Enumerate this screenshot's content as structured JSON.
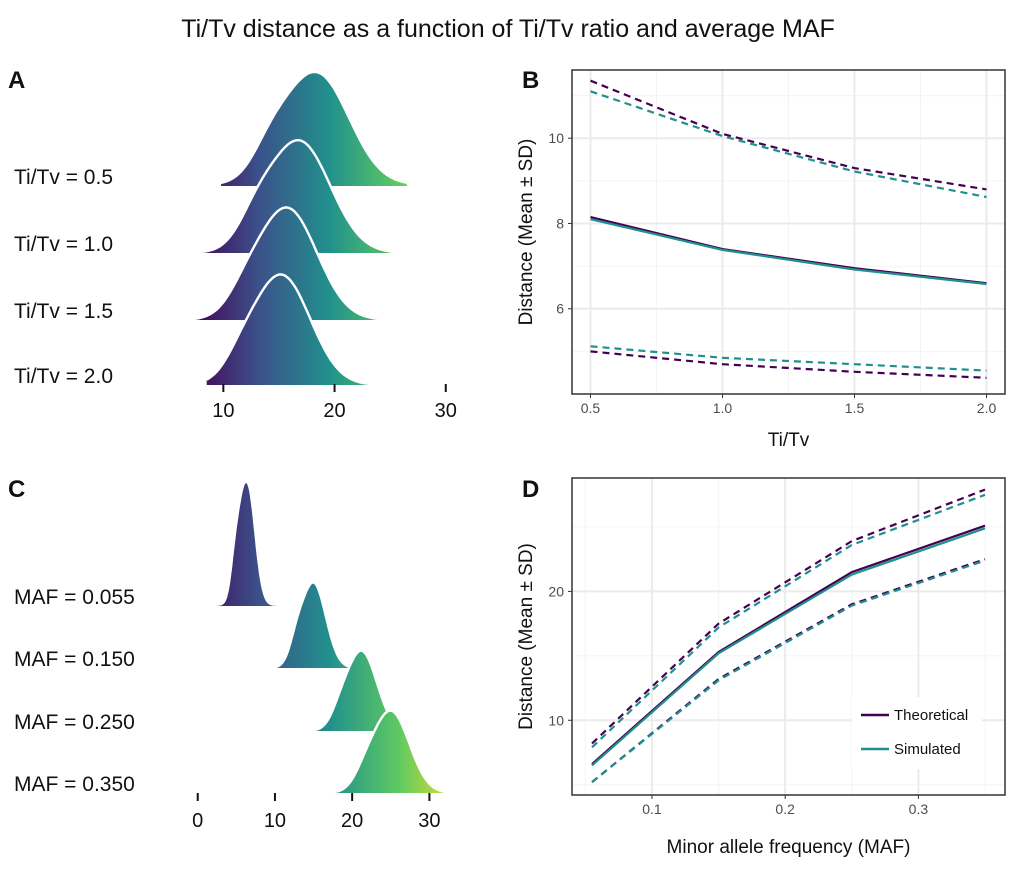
{
  "title": "Ti/Tv distance as a function of Ti/Tv ratio and average MAF",
  "colors": {
    "theoretical": "#440154",
    "simulated": "#21908c",
    "viridis": [
      "#440154",
      "#3b528b",
      "#21908c",
      "#5ec962",
      "#fde725"
    ],
    "grid_major": "#ebebeb",
    "grid_minor": "#f4f4f4"
  },
  "chart_data": [
    {
      "panel": "A",
      "type": "ridgeline",
      "title": "",
      "xlabel": "",
      "ylabel": "",
      "xlim": [
        7,
        32
      ],
      "x_ticks": [
        10,
        20,
        30
      ],
      "rows": [
        {
          "label": "Ti/Tv =  0.5",
          "range": [
            9.8,
            26.5
          ],
          "mean": 18.3,
          "sd": 2.9
        },
        {
          "label": "Ti/Tv =  1.0",
          "range": [
            8.2,
            25.2
          ],
          "mean": 16.8,
          "sd": 2.8
        },
        {
          "label": "Ti/Tv =  1.5",
          "range": [
            7.0,
            24.0
          ],
          "mean": 15.7,
          "sd": 2.7
        },
        {
          "label": "Ti/Tv =  2.0",
          "range": [
            8.5,
            23.0
          ],
          "mean": 15.2,
          "sd": 2.6
        }
      ]
    },
    {
      "panel": "B",
      "type": "line",
      "title": "",
      "xlabel": "Ti/Tv",
      "ylabel": "Distance (Mean ± SD)",
      "xlim": [
        0.43,
        2.07
      ],
      "ylim": [
        4.0,
        11.6
      ],
      "x_ticks": [
        0.5,
        1.0,
        1.5,
        2.0
      ],
      "y_ticks": [
        6,
        8,
        10
      ],
      "x": [
        0.5,
        1.0,
        1.5,
        2.0
      ],
      "series": [
        {
          "group": "theoretical",
          "style": "mean",
          "values": [
            8.15,
            7.4,
            6.95,
            6.6
          ]
        },
        {
          "group": "theoretical",
          "style": "upper",
          "values": [
            11.35,
            10.1,
            9.3,
            8.8
          ]
        },
        {
          "group": "theoretical",
          "style": "lower",
          "values": [
            5.0,
            4.7,
            4.52,
            4.38
          ]
        },
        {
          "group": "simulated",
          "style": "mean",
          "values": [
            8.1,
            7.38,
            6.92,
            6.58
          ]
        },
        {
          "group": "simulated",
          "style": "upper",
          "values": [
            11.1,
            10.05,
            9.22,
            8.62
          ]
        },
        {
          "group": "simulated",
          "style": "lower",
          "values": [
            5.12,
            4.85,
            4.7,
            4.55
          ]
        }
      ]
    },
    {
      "panel": "C",
      "type": "ridgeline",
      "title": "",
      "xlabel": "",
      "ylabel": "",
      "xlim": [
        -1,
        35
      ],
      "x_ticks": [
        0,
        10,
        20,
        30
      ],
      "rows": [
        {
          "label": "MAF =  0.055",
          "range": [
            2.5,
            10.5
          ],
          "mean": 6.3,
          "sd": 1.0
        },
        {
          "label": "MAF =  0.150",
          "range": [
            9.0,
            21.0
          ],
          "mean": 15.0,
          "sd": 1.6
        },
        {
          "label": "MAF =  0.250",
          "range": [
            15.0,
            28.0
          ],
          "mean": 21.2,
          "sd": 2.0
        },
        {
          "label": "MAF =  0.350",
          "range": [
            17.5,
            32.5
          ],
          "mean": 25.0,
          "sd": 2.4
        }
      ]
    },
    {
      "panel": "D",
      "type": "line",
      "title": "",
      "xlabel": "Minor allele frequency (MAF)",
      "ylabel": "Distance (Mean ± SD)",
      "xlim": [
        0.04,
        0.365
      ],
      "ylim": [
        4.2,
        28.8
      ],
      "x_ticks": [
        0.1,
        0.2,
        0.3
      ],
      "y_ticks": [
        10,
        20
      ],
      "x": [
        0.055,
        0.15,
        0.25,
        0.35
      ],
      "series": [
        {
          "group": "theoretical",
          "style": "mean",
          "values": [
            6.6,
            15.3,
            21.5,
            25.1
          ]
        },
        {
          "group": "theoretical",
          "style": "upper",
          "values": [
            8.2,
            17.5,
            23.9,
            27.9
          ]
        },
        {
          "group": "theoretical",
          "style": "lower",
          "values": [
            5.2,
            13.2,
            19.0,
            22.5
          ]
        },
        {
          "group": "simulated",
          "style": "mean",
          "values": [
            6.5,
            15.2,
            21.3,
            24.9
          ]
        },
        {
          "group": "simulated",
          "style": "upper",
          "values": [
            7.9,
            17.2,
            23.6,
            27.5
          ]
        },
        {
          "group": "simulated",
          "style": "lower",
          "values": [
            5.2,
            13.1,
            18.9,
            22.4
          ]
        }
      ],
      "legend": {
        "position": "bottom-right",
        "entries": [
          {
            "label": "Theoretical",
            "group": "theoretical"
          },
          {
            "label": "Simulated",
            "group": "simulated"
          }
        ]
      }
    }
  ]
}
